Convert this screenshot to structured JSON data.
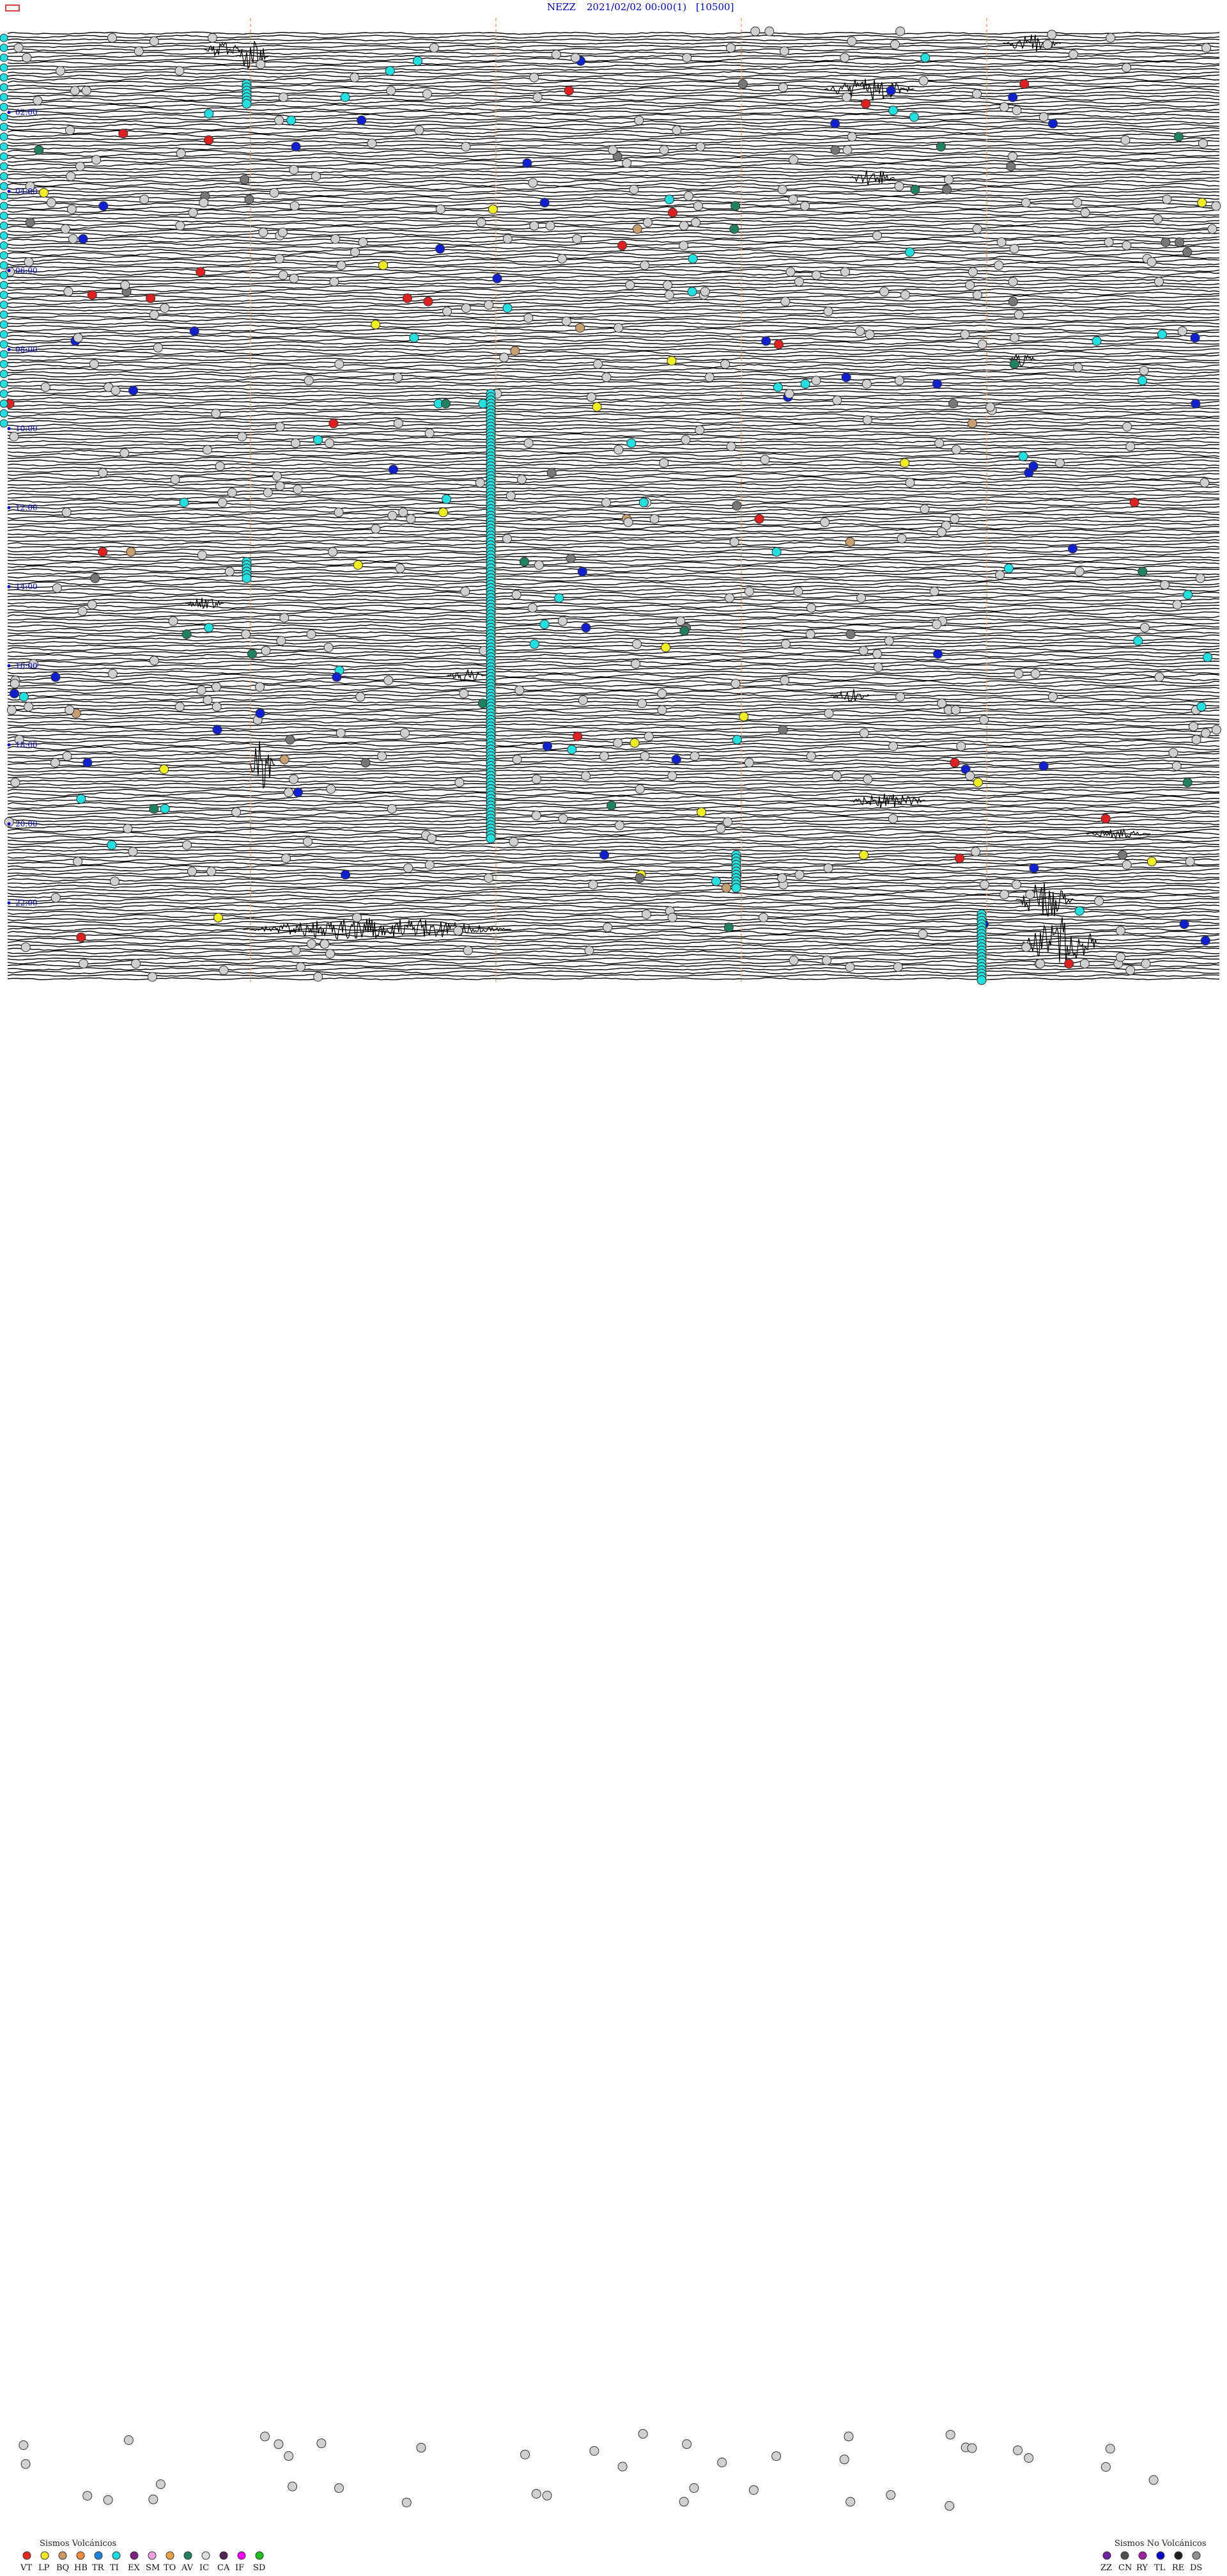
{
  "header": {
    "station": "NEZZ",
    "date": "2021/02/02 00:00",
    "paren": "(1)",
    "bracket": "[10500]"
  },
  "chart_data": {
    "type": "seismogram",
    "start": "2021/02/02 00:00",
    "hours": 24,
    "time_labels": [
      "02:00",
      "04:00",
      "06:00",
      "08:00",
      "10:00",
      "12:00",
      "14:00",
      "16:00",
      "18:00",
      "20:00",
      "22:00"
    ],
    "trace": {
      "color": "#000000",
      "background": "#ffffff",
      "guide_color": "#e8a27a"
    },
    "legend_volcanic": {
      "title": "Sismos Volcánicos",
      "items": [
        {
          "code": "VT",
          "color": "#e8281c"
        },
        {
          "code": "LP",
          "color": "#f5e61c"
        },
        {
          "code": "BQ",
          "color": "#cc9a6a"
        },
        {
          "code": "HB",
          "color": "#f08c3c"
        },
        {
          "code": "TR",
          "color": "#2080e0"
        },
        {
          "code": "TI",
          "color": "#1cdcdc"
        },
        {
          "code": "EX",
          "color": "#802080"
        },
        {
          "code": "SM",
          "color": "#f0a0e0"
        },
        {
          "code": "TO",
          "color": "#e8a040"
        },
        {
          "code": "AV",
          "color": "#208060"
        },
        {
          "code": "IC",
          "color": "#dcdcdc"
        },
        {
          "code": "CA",
          "color": "#552255"
        },
        {
          "code": "IF",
          "color": "#ff00ff"
        },
        {
          "code": "SD",
          "color": "#20c020"
        }
      ]
    },
    "legend_nonvolcanic": {
      "title": "Sismos No Volcánicos",
      "items": [
        {
          "code": "ZZ",
          "color": "#7020a0"
        },
        {
          "code": "CN",
          "color": "#505050"
        },
        {
          "code": "RY",
          "color": "#a020a0"
        },
        {
          "code": "TL",
          "color": "#0000cc"
        },
        {
          "code": "RE",
          "color": "#202020"
        },
        {
          "code": "DS",
          "color": "#909090"
        }
      ]
    },
    "event_colors": {
      "gray": "#d0d0d0",
      "dark": "#777777",
      "blue": "#1020d0",
      "red": "#e02020",
      "cyan": "#20e0e0",
      "yellow": "#f0f020",
      "green": "#208060",
      "tan": "#c8a070"
    }
  }
}
